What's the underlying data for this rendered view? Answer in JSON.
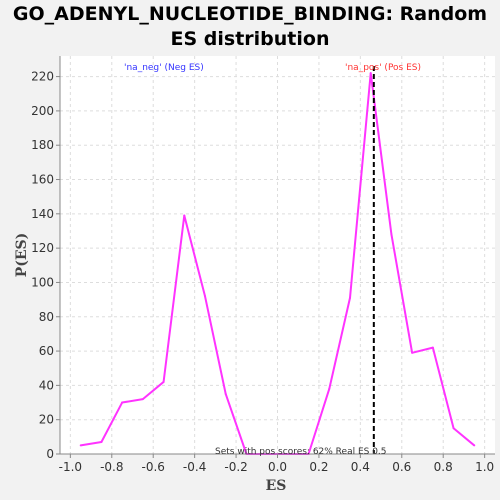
{
  "chart_data": {
    "type": "line",
    "title_line1": "GO_ADENYL_NUCLEOTIDE_BINDING: Random",
    "title_line2": "ES distribution",
    "xlabel": "ES",
    "ylabel": "P(ES)",
    "xlim": [
      -1.05,
      1.05
    ],
    "ylim": [
      0,
      232
    ],
    "xticks": [
      -1.0,
      -0.8,
      -0.6,
      -0.4,
      -0.2,
      0.0,
      0.2,
      0.4,
      0.6,
      0.8,
      1.0
    ],
    "xtick_labels": [
      "-1.0",
      "-0.8",
      "-0.6",
      "-0.4",
      "-0.2",
      "0.0",
      "0.2",
      "0.4",
      "0.6",
      "0.8",
      "1.0"
    ],
    "yticks": [
      0,
      20,
      40,
      60,
      80,
      100,
      120,
      140,
      160,
      180,
      200,
      220
    ],
    "ytick_labels": [
      "0",
      "20",
      "40",
      "60",
      "80",
      "100",
      "120",
      "140",
      "160",
      "180",
      "200",
      "220"
    ],
    "grid": true,
    "series": [
      {
        "color": "#ff33ff",
        "x": [
          -0.95,
          -0.85,
          -0.75,
          -0.65,
          -0.55,
          -0.45,
          -0.35,
          -0.25,
          -0.15,
          -0.05,
          0.05,
          0.15,
          0.25,
          0.35,
          0.45,
          0.55,
          0.65,
          0.75,
          0.85,
          0.95
        ],
        "y": [
          5,
          7,
          30,
          32,
          42,
          139,
          92,
          35,
          0,
          0,
          0,
          0,
          38,
          91,
          222,
          128,
          59,
          62,
          15,
          5
        ]
      }
    ],
    "real_es": 0.5,
    "real_es_line_x": 0.465,
    "legend_neg": "'na_neg' (Neg ES)",
    "legend_pos": "'na_pos' (Pos ES)",
    "legend_neg_color": "#3333ff",
    "legend_pos_color": "#ff3333",
    "annotation": "Sets with pos scores: 62%   Real ES 0.5"
  }
}
